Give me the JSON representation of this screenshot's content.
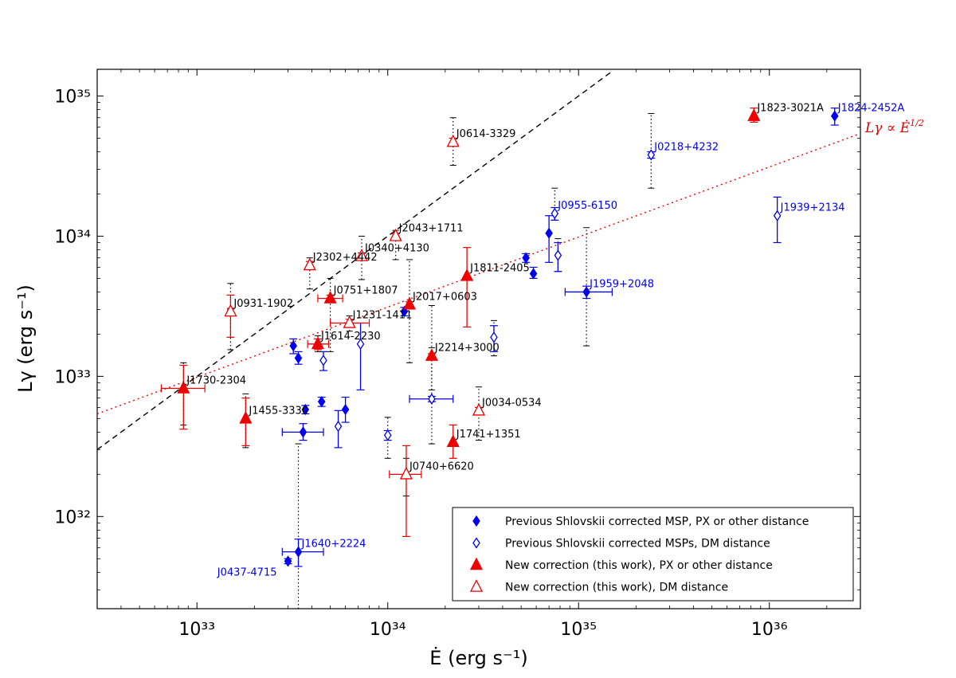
{
  "chart_data": {
    "type": "scatter",
    "title": "",
    "xlabel": "Ė  (erg s⁻¹)",
    "ylabel": "Lγ (erg s⁻¹)",
    "x_scale": "log",
    "y_scale": "log",
    "xlim": [
      3e+32,
      3e+36
    ],
    "ylim": [
      2.2e+31,
      1.55e+35
    ],
    "x_ticks": [
      {
        "value": 1e+33,
        "label": "10³³"
      },
      {
        "value": 1e+34,
        "label": "10³⁴"
      },
      {
        "value": 1e+35,
        "label": "10³⁵"
      },
      {
        "value": 1e+36,
        "label": "10³⁶"
      }
    ],
    "y_ticks": [
      {
        "value": 1e+32,
        "label": "10³²"
      },
      {
        "value": 1e+33,
        "label": "10³³"
      },
      {
        "value": 1e+34,
        "label": "10³⁴"
      },
      {
        "value": 1e+35,
        "label": "10³⁵"
      }
    ],
    "legend_position": "bottom-right",
    "colors": {
      "blue": "#0000ee",
      "red": "#ee0000",
      "black": "#000000"
    },
    "series": [
      {
        "name": "Previous Shlovskii corrected MSP, PX or other distance",
        "marker": "diamond",
        "filled": true,
        "color": "#0000ee"
      },
      {
        "name": "Previous Shlovskii corrected MSPs, DM distance",
        "marker": "diamond",
        "filled": false,
        "color": "#0000ee"
      },
      {
        "name": "New correction (this work), PX or other distance",
        "marker": "triangle",
        "filled": true,
        "color": "#ee0000"
      },
      {
        "name": "New correction (this work), DM distance",
        "marker": "triangle",
        "filled": false,
        "color": "#ee0000"
      }
    ],
    "lines": [
      {
        "style": "dashed",
        "color": "#000000",
        "points": [
          [
            3e+32,
            3e+32
          ],
          [
            1.5e+35,
            1.5e+35
          ]
        ]
      },
      {
        "style": "dotted",
        "color": "#ee0000",
        "points": [
          [
            3e+32,
            5.4e+32
          ],
          [
            3e+36,
            5.4e+34
          ]
        ],
        "annotation": "Lγ ∝ Ė^{1/2}"
      }
    ],
    "points": [
      {
        "label": "J1824-2452A",
        "series": 0,
        "x": 2.2e+36,
        "y": 7.2e+34,
        "yerr": [
          6.2e+34,
          8.2e+34
        ]
      },
      {
        "label": "J0218+4232",
        "series": 1,
        "x": 2.4e+35,
        "y": 3.8e+34,
        "yerr": [
          3.6e+34,
          4e+34
        ],
        "dm_range": [
          2.2e+34,
          7.5e+34
        ]
      },
      {
        "label": "J0955-6150",
        "series": 1,
        "x": 7.5e+34,
        "y": 1.45e+34,
        "yerr": [
          1.3e+34,
          1.6e+34
        ],
        "dm_range": [
          1.3e+34,
          2.2e+34
        ]
      },
      {
        "label": "J1939+2134",
        "series": 1,
        "x": 1.1e+36,
        "y": 1.4e+34,
        "yerr": [
          9e+33,
          1.9e+34
        ]
      },
      {
        "label": "J1959+2048",
        "series": 0,
        "x": 1.1e+35,
        "y": 4e+33,
        "yerr": [
          3.6e+33,
          4.4e+33
        ],
        "xerr": [
          8.5e+34,
          1.5e+35
        ],
        "dm_range": [
          1.65e+33,
          1.15e+34
        ]
      },
      {
        "label": "J1640+2224",
        "series": 0,
        "x": 3.4e+33,
        "y": 5.6e+31,
        "yerr": [
          4.4e+31,
          6.9e+31
        ],
        "xerr": [
          2.8e+33,
          4.6e+33
        ],
        "dm_range": [
          2.2e+31,
          3.3e+32
        ]
      },
      {
        "label": "J0437-4715",
        "series": 0,
        "x": 3e+33,
        "y": 4.8e+31,
        "yerr": [
          4.6e+31,
          5e+31
        ]
      },
      {
        "label": "",
        "series": 0,
        "x": 3.2e+33,
        "y": 1.65e+33,
        "yerr": [
          1.45e+33,
          1.85e+33
        ]
      },
      {
        "label": "",
        "series": 0,
        "x": 3.4e+33,
        "y": 1.35e+33,
        "yerr": [
          1.22e+33,
          1.5e+33
        ]
      },
      {
        "label": "",
        "series": 0,
        "x": 3.7e+33,
        "y": 5.8e+32,
        "yerr": [
          5.4e+32,
          6.2e+32
        ]
      },
      {
        "label": "",
        "series": 0,
        "x": 3.6e+33,
        "y": 4e+32,
        "yerr": [
          3.5e+32,
          4.6e+32
        ],
        "xerr": [
          2.8e+33,
          4.6e+33
        ]
      },
      {
        "label": "",
        "series": 0,
        "x": 4.5e+33,
        "y": 6.6e+32,
        "yerr": [
          6.1e+32,
          7.1e+32
        ]
      },
      {
        "label": "",
        "series": 0,
        "x": 6e+33,
        "y": 5.8e+32,
        "yerr": [
          4.7e+32,
          7.1e+32
        ]
      },
      {
        "label": "",
        "series": 0,
        "x": 1.22e+34,
        "y": 2.9e+33,
        "yerr": [
          2.7e+33,
          3.1e+33
        ]
      },
      {
        "label": "",
        "series": 0,
        "x": 5.3e+34,
        "y": 7e+33,
        "yerr": [
          6.5e+33,
          7.5e+33
        ]
      },
      {
        "label": "",
        "series": 0,
        "x": 5.8e+34,
        "y": 5.4e+33,
        "yerr": [
          5e+33,
          6e+33
        ]
      },
      {
        "label": "",
        "series": 0,
        "x": 7e+34,
        "y": 1.05e+34,
        "yerr": [
          6.5e+33,
          1.4e+34
        ]
      },
      {
        "label": "",
        "series": 1,
        "x": 4.6e+33,
        "y": 1.3e+33,
        "yerr": [
          1.1e+33,
          1.5e+33
        ]
      },
      {
        "label": "",
        "series": 1,
        "x": 5.5e+33,
        "y": 4.4e+32,
        "yerr": [
          3.1e+32,
          5.7e+32
        ]
      },
      {
        "label": "",
        "series": 1,
        "x": 7.2e+33,
        "y": 1.7e+33,
        "yerr": [
          8e+32,
          2.4e+33
        ]
      },
      {
        "label": "",
        "series": 1,
        "x": 1e+34,
        "y": 3.8e+32,
        "yerr": [
          3.5e+32,
          4.1e+32
        ],
        "dm_range": [
          2.6e+32,
          5.1e+32
        ]
      },
      {
        "label": "",
        "series": 1,
        "x": 1.7e+34,
        "y": 6.9e+32,
        "yerr": [
          6.6e+32,
          7.2e+32
        ],
        "xerr": [
          1.3e+34,
          2.2e+34
        ],
        "dm_range": [
          3.3e+32,
          1.6e+33
        ]
      },
      {
        "label": "",
        "series": 1,
        "x": 3.6e+34,
        "y": 1.9e+33,
        "yerr": [
          1.5e+33,
          2.3e+33
        ],
        "dm_range": [
          1.4e+33,
          2.5e+33
        ]
      },
      {
        "label": "",
        "series": 1,
        "x": 7.8e+34,
        "y": 7.3e+33,
        "yerr": [
          5.6e+33,
          9e+33
        ],
        "dm_range": [
          5.6e+33,
          9.6e+33
        ]
      },
      {
        "label": "J1823-3021A",
        "series": 2,
        "x": 8.3e+35,
        "y": 7.2e+34,
        "yerr": [
          6.5e+34,
          8.2e+34
        ]
      },
      {
        "label": "J1811-2405",
        "series": 2,
        "x": 2.6e+34,
        "y": 5.2e+33,
        "yerr": [
          2.25e+33,
          8.3e+33
        ]
      },
      {
        "label": "J2017+0603",
        "series": 2,
        "x": 1.3e+34,
        "y": 3.25e+33,
        "yerr": [
          3.1e+33,
          3.4e+33
        ],
        "dm_range": [
          1.25e+33,
          6.8e+33
        ]
      },
      {
        "label": "J0751+1807",
        "series": 2,
        "x": 5e+33,
        "y": 3.6e+33,
        "yerr": [
          3.4e+33,
          3.8e+33
        ],
        "xerr": [
          4.3e+33,
          5.8e+33
        ],
        "dm_range": [
          1.5e+33,
          5e+33
        ]
      },
      {
        "label": "J1614-2230",
        "series": 2,
        "x": 4.3e+33,
        "y": 1.7e+33,
        "yerr": [
          1.55e+33,
          1.85e+33
        ],
        "xerr": [
          3.8e+33,
          4.9e+33
        ],
        "dm_range": [
          1.5e+33,
          1.95e+33
        ]
      },
      {
        "label": "J1730-2304",
        "series": 2,
        "x": 8.5e+32,
        "y": 8.2e+32,
        "yerr": [
          4.2e+32,
          1.2e+33
        ],
        "xerr": [
          6.5e+32,
          1.1e+33
        ],
        "dm_range": [
          4.5e+32,
          1.25e+33
        ]
      },
      {
        "label": "J1455-3330",
        "series": 2,
        "x": 1.8e+33,
        "y": 5e+32,
        "yerr": [
          3.2e+32,
          7e+32
        ],
        "dm_range": [
          3.1e+32,
          7.5e+32
        ]
      },
      {
        "label": "J2214+3000",
        "series": 2,
        "x": 1.7e+34,
        "y": 1.4e+33,
        "yerr": [
          1.35e+33,
          1.45e+33
        ],
        "dm_range": [
          8e+32,
          3.2e+33
        ]
      },
      {
        "label": "J1741+1351",
        "series": 2,
        "x": 2.2e+34,
        "y": 3.4e+32,
        "yerr": [
          2.6e+32,
          4.5e+32
        ]
      },
      {
        "label": "J0614-3329",
        "series": 3,
        "x": 2.2e+34,
        "y": 4.7e+34,
        "yerr": [
          4.4e+34,
          5e+34
        ],
        "dm_range": [
          3.2e+34,
          7e+34
        ]
      },
      {
        "label": "J2043+1711",
        "series": 3,
        "x": 1.1e+34,
        "y": 1e+34,
        "yerr": [
          9.6e+33,
          1.04e+34
        ],
        "dm_range": [
          6.8e+33,
          1.1e+34
        ]
      },
      {
        "label": "J0340+4130",
        "series": 3,
        "x": 7.3e+33,
        "y": 7.2e+33,
        "yerr": [
          6.8e+33,
          7.6e+33
        ],
        "dm_range": [
          4.9e+33,
          1e+34
        ]
      },
      {
        "label": "J2302+4442",
        "series": 3,
        "x": 3.9e+33,
        "y": 6.2e+33,
        "yerr": [
          5.8e+33,
          6.6e+33
        ],
        "dm_range": [
          4.2e+33,
          7e+33
        ]
      },
      {
        "label": "J0931-1902",
        "series": 3,
        "x": 1.5e+33,
        "y": 2.9e+33,
        "yerr": [
          1.9e+33,
          3.8e+33
        ],
        "xerr": [
          1.45e+33,
          1.55e+33
        ],
        "dm_range": [
          1.55e+33,
          4.6e+33
        ]
      },
      {
        "label": "J1231-1411",
        "series": 3,
        "x": 6.3e+33,
        "y": 2.4e+33,
        "yerr": [
          2.25e+33,
          2.55e+33
        ],
        "xerr": [
          5e+33,
          8e+33
        ],
        "dm_range": [
          2.1e+33,
          2.7e+33
        ]
      },
      {
        "label": "J0034-0534",
        "series": 3,
        "x": 3e+34,
        "y": 5.7e+32,
        "yerr": [
          5.4e+32,
          6e+32
        ],
        "dm_range": [
          3.5e+32,
          8.4e+32
        ]
      },
      {
        "label": "J0740+6620",
        "series": 3,
        "x": 1.25e+34,
        "y": 2e+32,
        "yerr": [
          7.2e+31,
          3.2e+32
        ],
        "xerr": [
          1.02e+34,
          1.5e+34
        ],
        "dm_range": [
          1.4e+32,
          2.6e+32
        ]
      }
    ],
    "label_colors": {
      "J1824-2452A": "#0000ee",
      "J0218+4232": "#0000ee",
      "J0955-6150": "#0000ee",
      "J1939+2134": "#0000ee",
      "J1959+2048": "#0000ee",
      "J1640+2224": "#0000ee",
      "J0437-4715": "#0000ee"
    }
  }
}
